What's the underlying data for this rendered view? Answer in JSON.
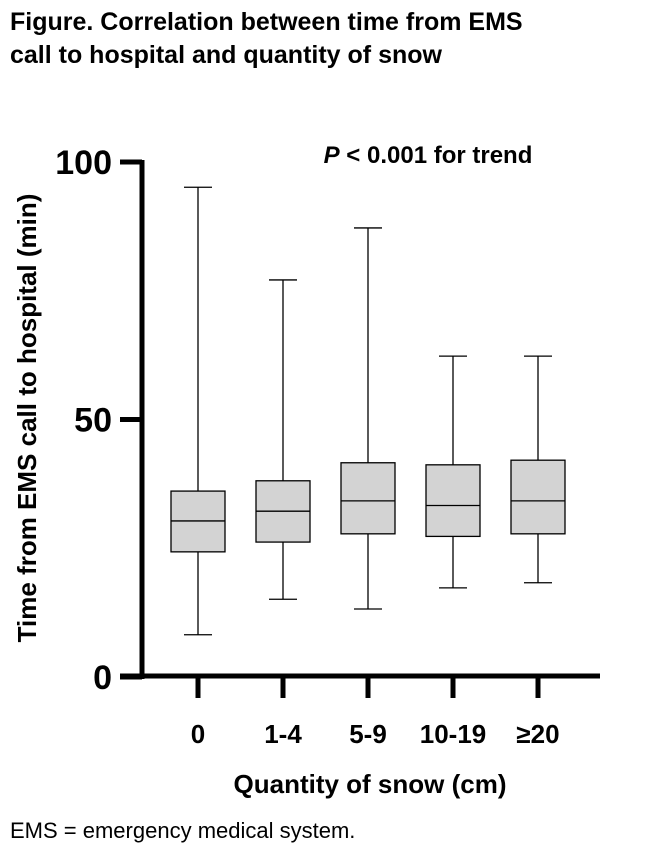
{
  "figure": {
    "title_line1": "Figure. Correlation between time from EMS",
    "title_line2": "call to hospital and quantity of snow",
    "footnote": "EMS = emergency medical system."
  },
  "chart_data": {
    "type": "box",
    "title": "",
    "annotation_p": "P",
    "annotation_rest": " < 0.001 for trend",
    "xlabel": "Quantity of snow (cm)",
    "ylabel": "Time from EMS call to hospital (min)",
    "ylim": [
      0,
      100
    ],
    "yticks": [
      "0",
      "50",
      "100"
    ],
    "yticks_values": [
      0,
      50,
      100
    ],
    "categories": [
      "0",
      "1-4",
      "5-9",
      "10-19",
      "≥20"
    ],
    "grid": false,
    "box_fill": "#d3d3d3",
    "boxes": [
      {
        "category": "0",
        "min": 8.2,
        "q1": 24.3,
        "median": 30.3,
        "q3": 36.1,
        "max": 95.1
      },
      {
        "category": "1-4",
        "min": 15.1,
        "q1": 26.2,
        "median": 32.2,
        "q3": 38.1,
        "max": 77.1
      },
      {
        "category": "5-9",
        "min": 13.2,
        "q1": 27.8,
        "median": 34.2,
        "q3": 41.6,
        "max": 87.2
      },
      {
        "category": "10-19",
        "min": 17.3,
        "q1": 27.3,
        "median": 33.3,
        "q3": 41.2,
        "max": 62.3
      },
      {
        "category": "≥20",
        "min": 18.3,
        "q1": 27.8,
        "median": 34.2,
        "q3": 42.1,
        "max": 62.3
      }
    ]
  }
}
